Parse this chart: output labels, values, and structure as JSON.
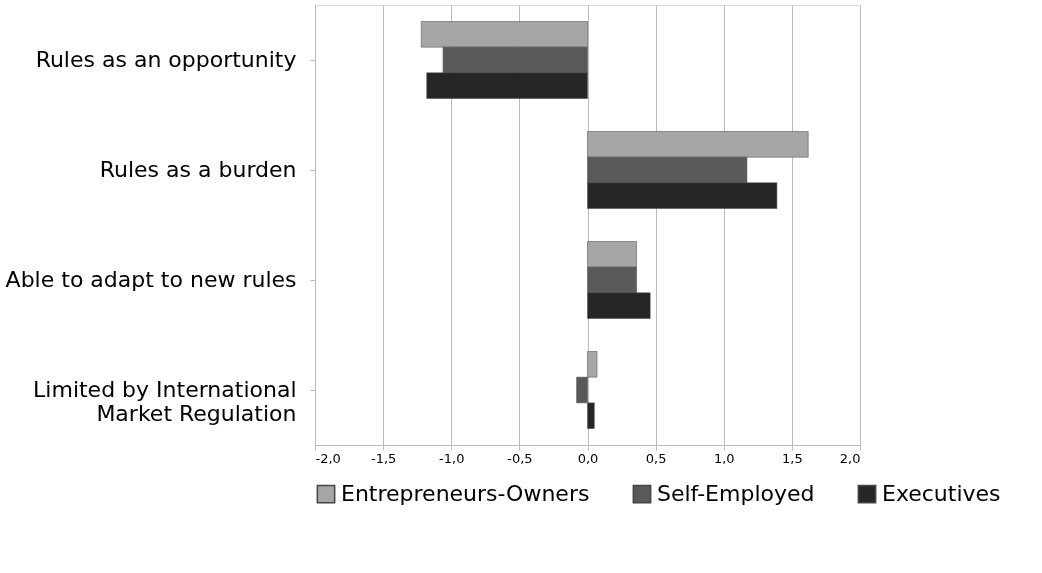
{
  "chart_data": {
    "type": "bar",
    "orientation": "horizontal",
    "categories": [
      "Rules as an opportunity",
      "Rules as a burden",
      "Able to adapt to new rules",
      "Limited by International\nMarket Regulation"
    ],
    "series": [
      {
        "name": "Entrepreneurs-Owners",
        "color": "#a6a6a6",
        "values": [
          -1.22,
          1.62,
          0.36,
          0.07
        ]
      },
      {
        "name": "Self-Employed",
        "color": "#595959",
        "values": [
          -1.06,
          1.17,
          0.36,
          -0.08
        ]
      },
      {
        "name": "Executives",
        "color": "#262626",
        "values": [
          -1.18,
          1.39,
          0.46,
          0.05
        ]
      }
    ],
    "xlim": [
      -2,
      2
    ],
    "xticks": [
      {
        "value": -2,
        "label": "-2,0"
      },
      {
        "value": -1.5,
        "label": "-1,5"
      },
      {
        "value": -1,
        "label": "-1,0"
      },
      {
        "value": -0.5,
        "label": "-0,5"
      },
      {
        "value": 0,
        "label": "0,0"
      },
      {
        "value": 0.5,
        "label": "0,5"
      },
      {
        "value": 1,
        "label": "1,0"
      },
      {
        "value": 1.5,
        "label": "1,5"
      },
      {
        "value": 2,
        "label": "2,0"
      }
    ],
    "grid": "x",
    "legend": "bottom"
  }
}
